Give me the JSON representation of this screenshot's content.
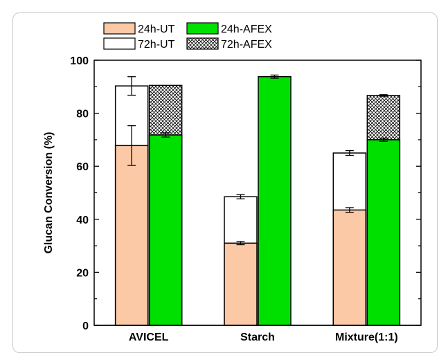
{
  "chart_data": {
    "type": "bar",
    "ylabel": "Glucan Conversion (%)",
    "xlabel": "",
    "ylim": [
      0,
      100
    ],
    "yticks": [
      0,
      20,
      40,
      60,
      80,
      100
    ],
    "categories": [
      "AVICEL",
      "Starch",
      "Mixture(1:1)"
    ],
    "legend": {
      "placement": "top-left",
      "entries": [
        "24h-UT",
        "24h-AFEX",
        "72h-UT",
        "72h-AFEX"
      ]
    },
    "groups": [
      {
        "name": "UT",
        "base": {
          "name": "24h-UT",
          "values": [
            67.8,
            31.0,
            43.5
          ],
          "errors": [
            7.5,
            0.6,
            0.9
          ]
        },
        "top": {
          "name": "72h-UT",
          "values": [
            90.3,
            48.5,
            65.0
          ],
          "errors": [
            3.5,
            0.8,
            0.9
          ]
        }
      },
      {
        "name": "AFEX",
        "base": {
          "name": "24h-AFEX",
          "values": [
            71.8,
            93.8,
            70.0
          ],
          "errors": [
            0.8,
            0.6,
            0.6
          ]
        },
        "top": {
          "name": "72h-AFEX",
          "values": [
            90.5,
            null,
            86.7
          ],
          "errors": [
            null,
            null,
            0.3
          ]
        }
      }
    ],
    "colors": {
      "24h-UT": "#fcc9a7",
      "24h-AFEX": "#00e000",
      "72h-UT": "#ffffff",
      "72h-AFEX": "hatched"
    }
  }
}
